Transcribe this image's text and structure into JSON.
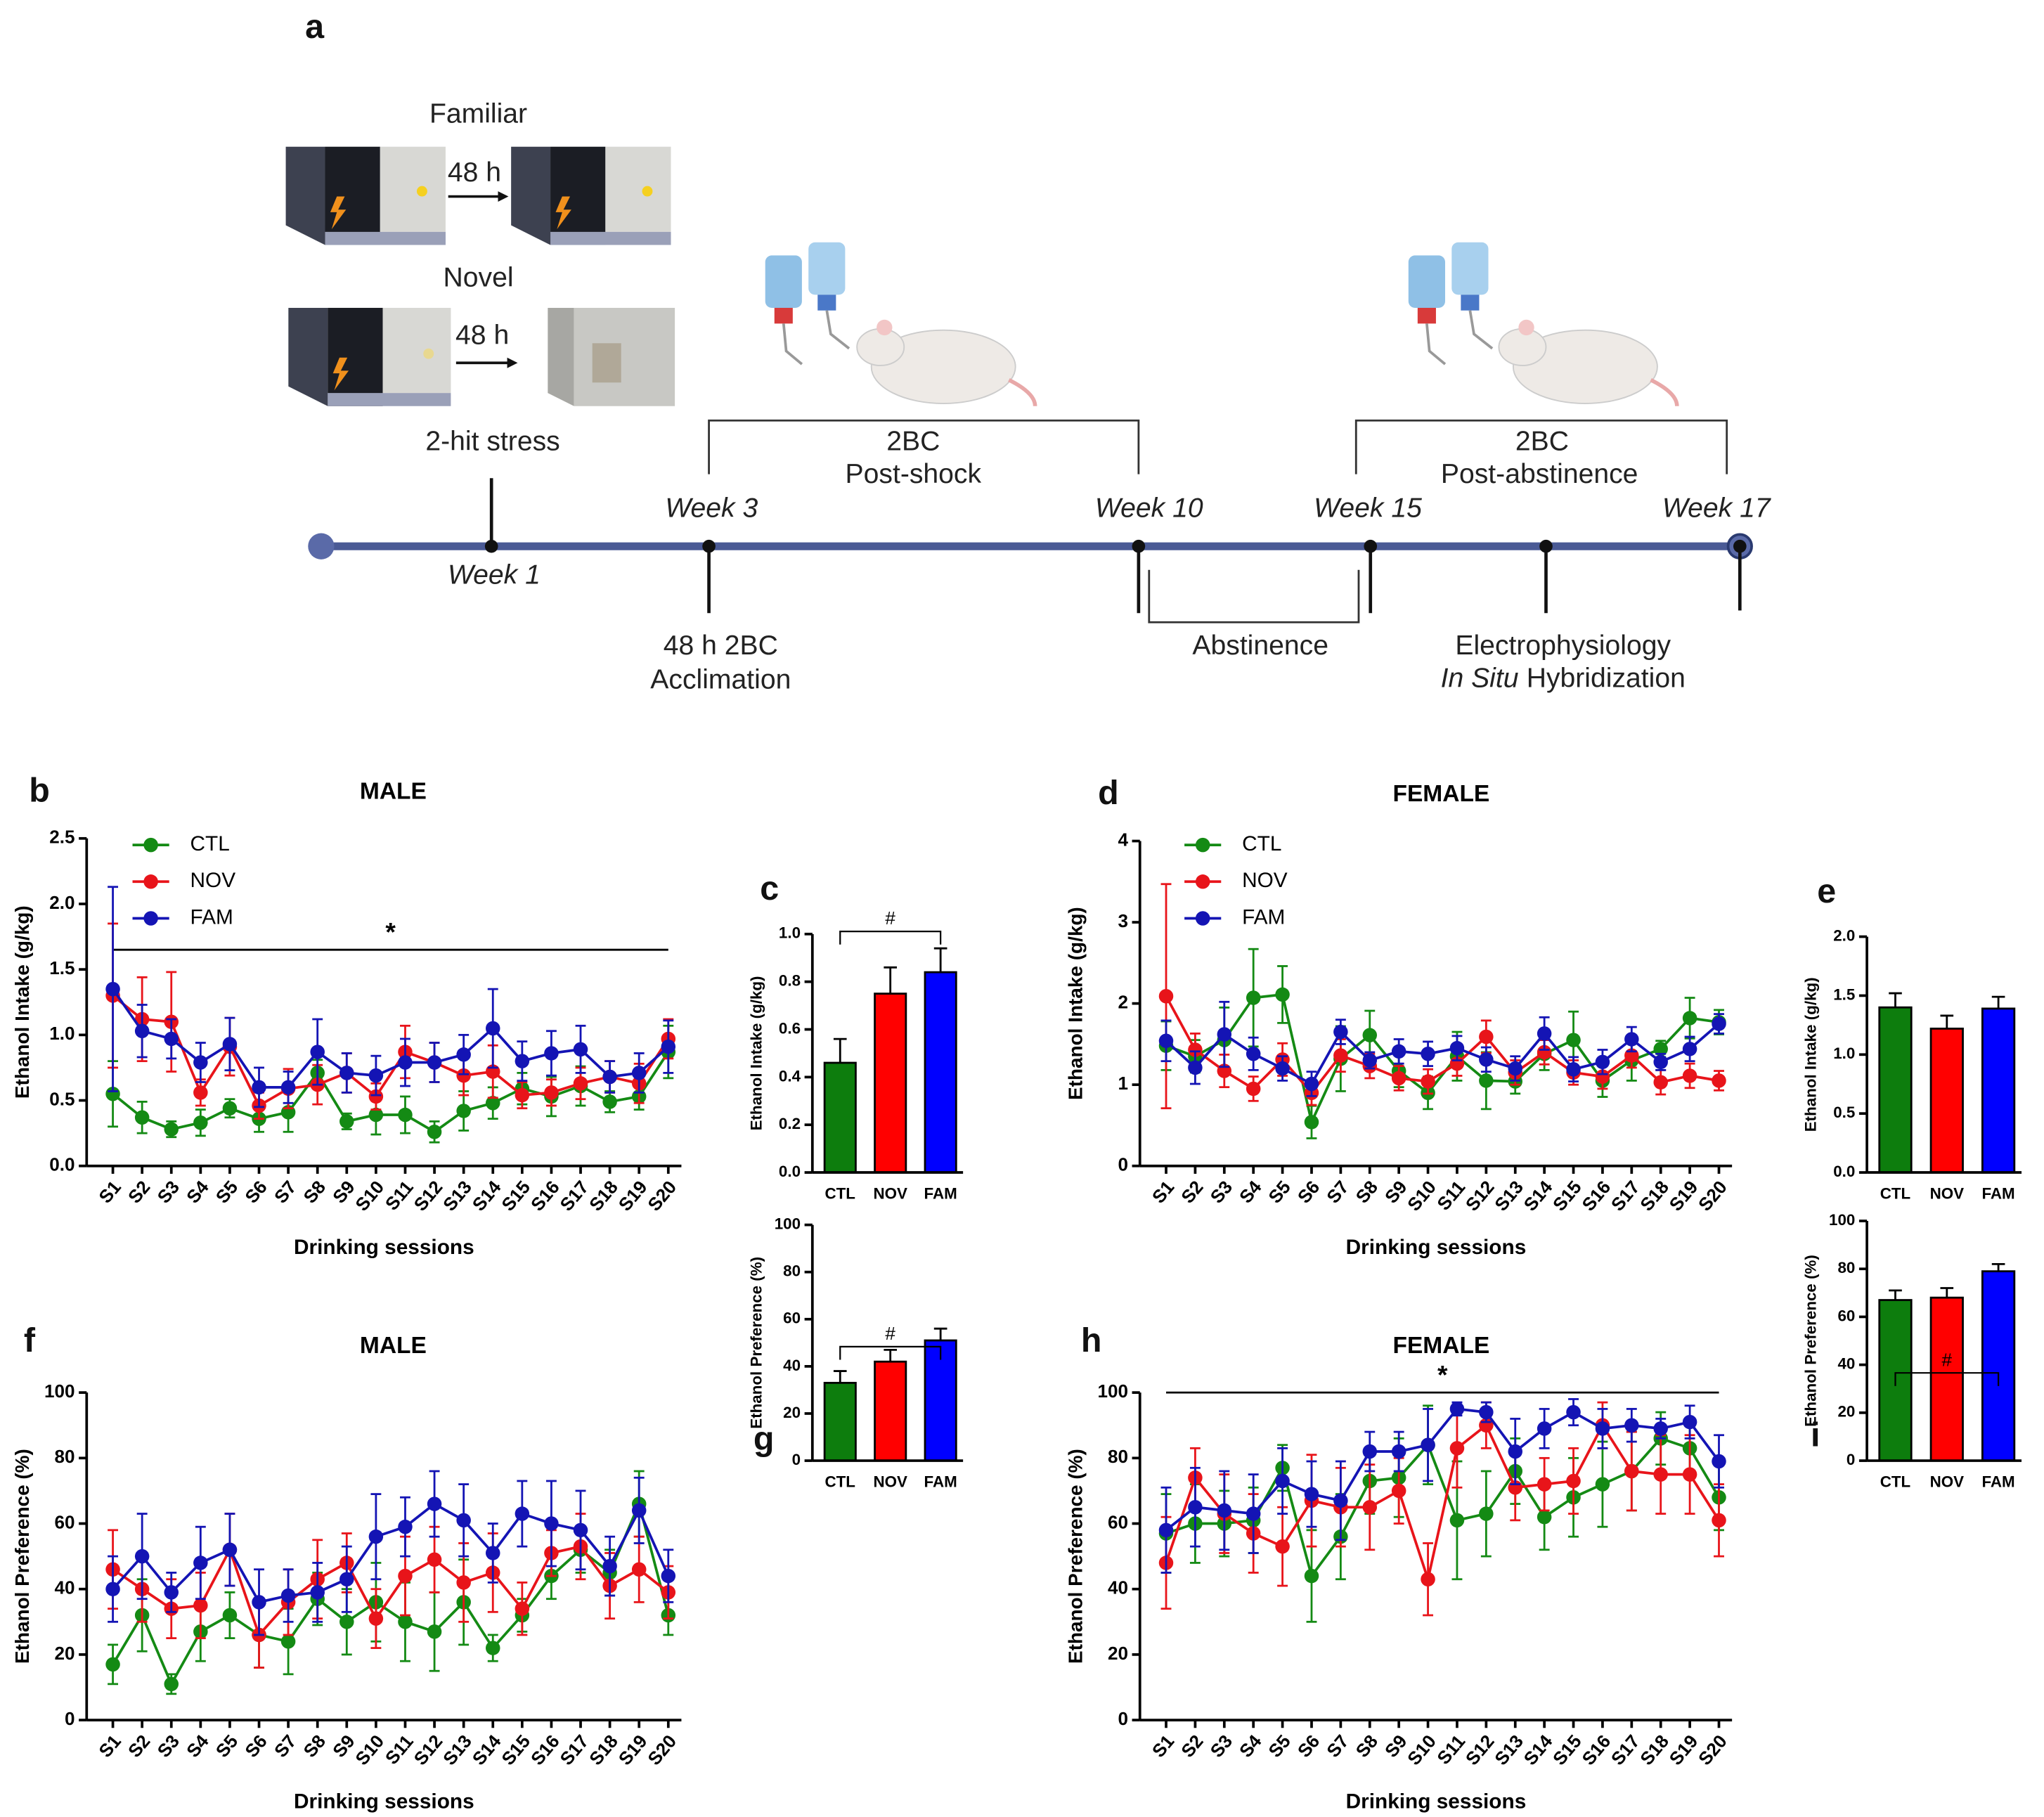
{
  "panel_a": {
    "label": "a",
    "stress": {
      "familiar": "Familiar",
      "familiar_interval": "48 h",
      "novel": "Novel",
      "novel_interval": "48 h",
      "caption": "2-hit stress"
    },
    "timeline": {
      "weeks": [
        "Week 1",
        "Week 3",
        "Week 10",
        "Week 15",
        "Week 17"
      ],
      "post_shock": [
        "2BC",
        "Post-shock"
      ],
      "post_abstinence": [
        "2BC",
        "Post-abstinence"
      ],
      "acclimation": [
        "48 h 2BC",
        "Acclimation"
      ],
      "abstinence": "Abstinence",
      "assays": {
        "line1": "Electrophysiology",
        "line2_italic": "In Situ",
        "line2": "Hybridization"
      }
    }
  },
  "chart_data": [
    {
      "type": "line",
      "panel": "b",
      "title": "MALE",
      "xlabel": "Drinking sessions",
      "ylabel": "Ethanol Intake (g/kg)",
      "categories": [
        "S1",
        "S2",
        "S3",
        "S4",
        "S5",
        "S6",
        "S7",
        "S8",
        "S9",
        "S10",
        "S11",
        "S12",
        "S13",
        "S14",
        "S15",
        "S16",
        "S17",
        "S18",
        "S19",
        "S20"
      ],
      "series": [
        {
          "name": "CTL",
          "color": "#148a14",
          "values": [
            0.55,
            0.37,
            0.28,
            0.33,
            0.44,
            0.36,
            0.41,
            0.71,
            0.34,
            0.39,
            0.39,
            0.26,
            0.42,
            0.48,
            0.59,
            0.53,
            0.61,
            0.49,
            0.53,
            0.87
          ],
          "errors": [
            0.25,
            0.12,
            0.06,
            0.1,
            0.07,
            0.1,
            0.15,
            0.1,
            0.06,
            0.15,
            0.14,
            0.08,
            0.15,
            0.12,
            0.12,
            0.15,
            0.15,
            0.08,
            0.1,
            0.2
          ]
        },
        {
          "name": "NOV",
          "color": "#e8141a",
          "values": [
            1.3,
            1.12,
            1.1,
            0.56,
            0.91,
            0.46,
            0.59,
            0.62,
            0.71,
            0.53,
            0.87,
            0.79,
            0.69,
            0.72,
            0.54,
            0.56,
            0.63,
            0.68,
            0.63,
            0.97
          ],
          "errors": [
            0.55,
            0.32,
            0.38,
            0.1,
            0.22,
            0.1,
            0.15,
            0.15,
            0.15,
            0.1,
            0.2,
            0.15,
            0.15,
            0.2,
            0.1,
            0.1,
            0.12,
            0.12,
            0.15,
            0.15
          ]
        },
        {
          "name": "FAM",
          "color": "#1414b4",
          "values": [
            1.35,
            1.03,
            0.97,
            0.79,
            0.93,
            0.6,
            0.6,
            0.87,
            0.71,
            0.69,
            0.79,
            0.79,
            0.85,
            1.05,
            0.8,
            0.86,
            0.89,
            0.68,
            0.71,
            0.91
          ],
          "errors": [
            0.78,
            0.2,
            0.15,
            0.15,
            0.2,
            0.15,
            0.12,
            0.25,
            0.15,
            0.15,
            0.18,
            0.15,
            0.15,
            0.3,
            0.15,
            0.17,
            0.18,
            0.12,
            0.15,
            0.2
          ]
        }
      ],
      "ylim": [
        0,
        2.5
      ],
      "yticks": [
        {
          "value": 0,
          "label": "0.0"
        },
        0.5,
        {
          "value": 1,
          "label": "1.0"
        },
        1.5,
        {
          "value": 2,
          "label": "2.0"
        },
        2.5
      ],
      "legend": "upper left",
      "annotation": "*"
    },
    {
      "type": "bar",
      "panel": "c",
      "ylabel": "Ethanol Intake (g/kg)",
      "categories": [
        "CTL",
        "NOV",
        "FAM"
      ],
      "values": [
        0.46,
        0.75,
        0.84
      ],
      "errors": [
        0.1,
        0.11,
        0.1
      ],
      "colors": [
        "#0d7d0d",
        "#ff0000",
        "#0000ff"
      ],
      "ylim": [
        0,
        1
      ],
      "yticks": [
        {
          "value": 0,
          "label": "0.0"
        },
        0.2,
        0.4,
        0.6,
        0.8,
        {
          "value": 1,
          "label": "1.0"
        }
      ],
      "annotation": "#"
    },
    {
      "type": "line",
      "panel": "d",
      "title": "FEMALE",
      "xlabel": "Drinking sessions",
      "ylabel": "Ethanol Intake (g/kg)",
      "categories": [
        "S1",
        "S2",
        "S3",
        "S4",
        "S5",
        "S6",
        "S7",
        "S8",
        "S9",
        "S10",
        "S11",
        "S12",
        "S13",
        "S14",
        "S15",
        "S16",
        "S17",
        "S18",
        "S19",
        "S20"
      ],
      "series": [
        {
          "name": "CTL",
          "color": "#148a14",
          "values": [
            1.48,
            1.35,
            1.55,
            2.07,
            2.11,
            0.54,
            1.32,
            1.61,
            1.17,
            0.9,
            1.35,
            1.05,
            1.04,
            1.38,
            1.55,
            1.05,
            1.3,
            1.44,
            1.82,
            1.77
          ],
          "errors": [
            0.3,
            0.2,
            0.4,
            0.6,
            0.35,
            0.2,
            0.4,
            0.3,
            0.2,
            0.2,
            0.3,
            0.35,
            0.15,
            0.2,
            0.35,
            0.2,
            0.25,
            0.1,
            0.25,
            0.15
          ]
        },
        {
          "name": "NOV",
          "color": "#e8141a",
          "values": [
            2.09,
            1.43,
            1.17,
            0.95,
            1.31,
            0.9,
            1.36,
            1.23,
            1.08,
            1.04,
            1.26,
            1.59,
            1.15,
            1.4,
            1.15,
            1.1,
            1.36,
            1.03,
            1.11,
            1.05
          ],
          "errors": [
            1.38,
            0.2,
            0.2,
            0.15,
            0.2,
            0.15,
            0.2,
            0.15,
            0.15,
            0.15,
            0.15,
            0.2,
            0.15,
            0.15,
            0.15,
            0.15,
            0.15,
            0.15,
            0.15,
            0.12
          ]
        },
        {
          "name": "FAM",
          "color": "#1414b4",
          "values": [
            1.54,
            1.21,
            1.62,
            1.38,
            1.2,
            1.01,
            1.65,
            1.3,
            1.41,
            1.38,
            1.45,
            1.31,
            1.2,
            1.63,
            1.19,
            1.28,
            1.56,
            1.28,
            1.44,
            1.75
          ],
          "errors": [
            0.25,
            0.2,
            0.4,
            0.2,
            0.15,
            0.15,
            0.15,
            0.1,
            0.15,
            0.15,
            0.15,
            0.15,
            0.15,
            0.2,
            0.15,
            0.15,
            0.15,
            0.1,
            0.15,
            0.12
          ]
        }
      ],
      "ylim": [
        0,
        4
      ],
      "yticks": [
        0,
        1,
        2,
        3,
        4
      ],
      "legend": "upper left"
    },
    {
      "type": "bar",
      "panel": "e",
      "ylabel": "Ethanol Intake (g/kg)",
      "categories": [
        "CTL",
        "NOV",
        "FAM"
      ],
      "values": [
        1.4,
        1.22,
        1.39
      ],
      "errors": [
        0.12,
        0.11,
        0.1
      ],
      "colors": [
        "#0d7d0d",
        "#ff0000",
        "#0000ff"
      ],
      "ylim": [
        0,
        2
      ],
      "yticks": [
        {
          "value": 0,
          "label": "0.0"
        },
        0.5,
        {
          "value": 1,
          "label": "1.0"
        },
        1.5,
        {
          "value": 2,
          "label": "2.0"
        }
      ]
    },
    {
      "type": "line",
      "panel": "f",
      "title": "MALE",
      "xlabel": "Drinking sessions",
      "ylabel": "Ethanol Preference (%)",
      "categories": [
        "S1",
        "S2",
        "S3",
        "S4",
        "S5",
        "S6",
        "S7",
        "S8",
        "S9",
        "S10",
        "S11",
        "S12",
        "S13",
        "S14",
        "S15",
        "S16",
        "S17",
        "S18",
        "S19",
        "S20"
      ],
      "series": [
        {
          "color": "#148a14",
          "values": [
            17,
            32,
            11,
            27,
            32,
            26,
            24,
            37,
            30,
            36,
            30,
            27,
            36,
            22,
            32,
            44,
            52,
            45,
            66,
            32
          ],
          "errors": [
            6,
            11,
            3,
            9,
            7,
            10,
            10,
            8,
            10,
            12,
            12,
            12,
            13,
            4,
            5,
            7,
            7,
            7,
            10,
            6
          ]
        },
        {
          "color": "#e8141a",
          "values": [
            46,
            40,
            34,
            35,
            52,
            26,
            36,
            43,
            48,
            31,
            44,
            49,
            42,
            45,
            34,
            51,
            53,
            41,
            46,
            39
          ],
          "errors": [
            12,
            10,
            9,
            10,
            11,
            10,
            10,
            12,
            9,
            9,
            12,
            10,
            12,
            12,
            8,
            7,
            10,
            10,
            10,
            8
          ]
        },
        {
          "color": "#1414b4",
          "values": [
            40,
            50,
            39,
            48,
            52,
            36,
            38,
            39,
            43,
            56,
            59,
            66,
            61,
            51,
            63,
            60,
            58,
            47,
            64,
            44
          ],
          "errors": [
            10,
            13,
            6,
            11,
            11,
            10,
            8,
            9,
            10,
            13,
            9,
            10,
            11,
            9,
            10,
            13,
            12,
            9,
            10,
            8
          ]
        }
      ],
      "ylim": [
        0,
        100
      ],
      "yticks": [
        0,
        20,
        40,
        60,
        80,
        100
      ]
    },
    {
      "type": "bar",
      "panel": "g",
      "ylabel": "Ethanol Preference (%)",
      "categories": [
        "CTL",
        "NOV",
        "FAM"
      ],
      "values": [
        33,
        42,
        51
      ],
      "errors": [
        5,
        5,
        5
      ],
      "colors": [
        "#0d7d0d",
        "#ff0000",
        "#0000ff"
      ],
      "ylim": [
        0,
        100
      ],
      "yticks": [
        0,
        20,
        40,
        60,
        80,
        100
      ],
      "annotation": "#"
    },
    {
      "type": "line",
      "panel": "h",
      "title": "FEMALE",
      "xlabel": "Drinking sessions",
      "ylabel": "Ethanol Preference (%)",
      "categories": [
        "S1",
        "S2",
        "S3",
        "S4",
        "S5",
        "S6",
        "S7",
        "S8",
        "S9",
        "S10",
        "S11",
        "S12",
        "S13",
        "S14",
        "S15",
        "S16",
        "S17",
        "S18",
        "S19",
        "S20"
      ],
      "series": [
        {
          "color": "#148a14",
          "values": [
            57,
            60,
            60,
            61,
            77,
            44,
            56,
            73,
            74,
            84,
            61,
            63,
            76,
            62,
            68,
            72,
            76,
            86,
            83,
            68
          ],
          "errors": [
            12,
            12,
            10,
            10,
            7,
            14,
            13,
            10,
            12,
            12,
            18,
            13,
            10,
            10,
            12,
            13,
            12,
            8,
            8,
            10
          ]
        },
        {
          "color": "#e8141a",
          "values": [
            48,
            74,
            63,
            57,
            53,
            67,
            65,
            65,
            70,
            43,
            83,
            90,
            71,
            72,
            73,
            90,
            76,
            75,
            75,
            61
          ],
          "errors": [
            14,
            9,
            12,
            12,
            12,
            14,
            12,
            13,
            10,
            11,
            12,
            7,
            10,
            8,
            10,
            7,
            12,
            12,
            12,
            11
          ]
        },
        {
          "color": "#1414b4",
          "values": [
            58,
            65,
            64,
            63,
            73,
            69,
            67,
            82,
            82,
            84,
            95,
            94,
            82,
            89,
            94,
            89,
            90,
            89,
            91,
            79
          ],
          "errors": [
            13,
            12,
            12,
            12,
            10,
            10,
            12,
            6,
            6,
            11,
            2,
            3,
            10,
            6,
            4,
            6,
            5,
            3,
            5,
            8
          ]
        }
      ],
      "ylim": [
        0,
        100
      ],
      "yticks": [
        0,
        20,
        40,
        60,
        80,
        100
      ],
      "annotation": "*"
    },
    {
      "type": "bar",
      "panel": "i",
      "ylabel": "Ethanol Preference (%)",
      "categories": [
        "CTL",
        "NOV",
        "FAM"
      ],
      "values": [
        67,
        68,
        79
      ],
      "errors": [
        4,
        4,
        3
      ],
      "colors": [
        "#0d7d0d",
        "#ff0000",
        "#0000ff"
      ],
      "ylim": [
        0,
        100
      ],
      "yticks": [
        0,
        20,
        40,
        60,
        80,
        100
      ],
      "annotation": "#"
    }
  ]
}
